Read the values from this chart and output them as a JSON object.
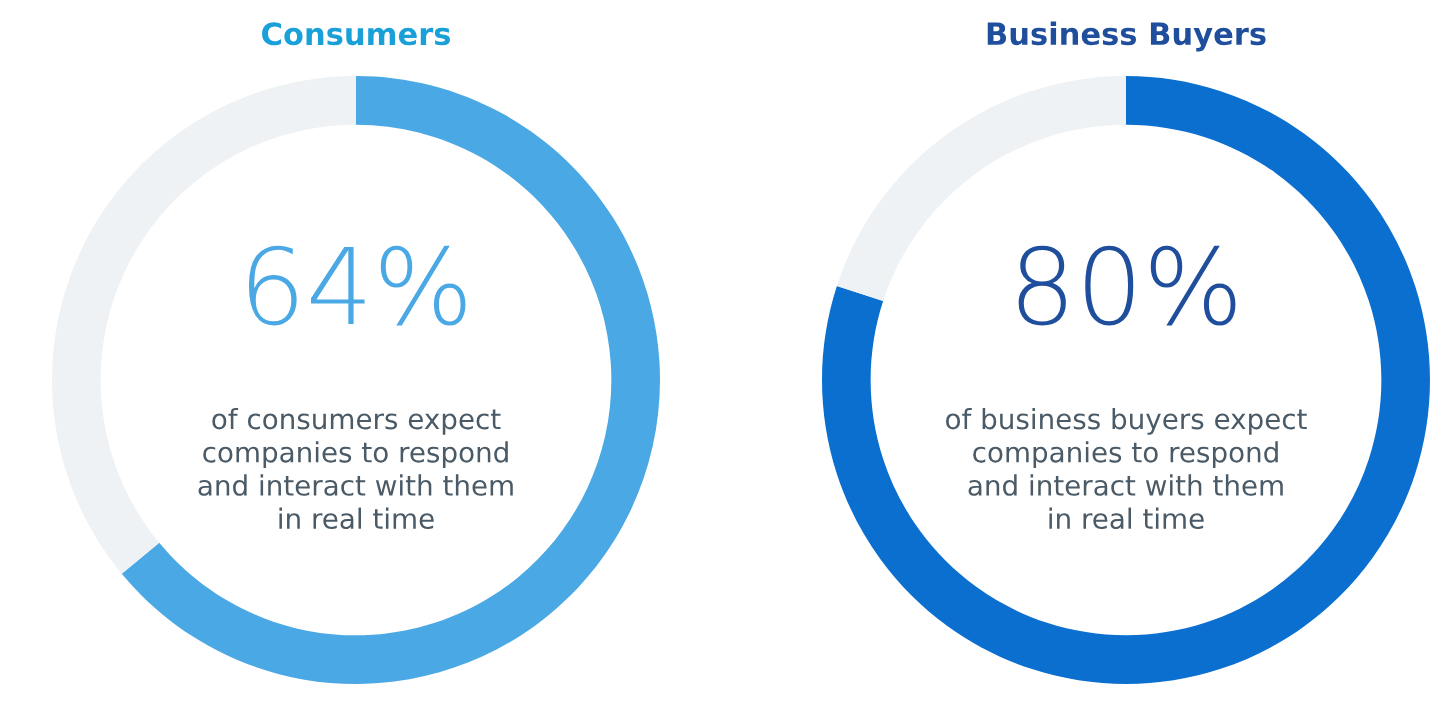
{
  "chart_data": [
    {
      "type": "donut",
      "title": "Consumers",
      "categories": [
        null,
        null
      ],
      "values": [
        64,
        36
      ],
      "colors": [
        "#4aa8e4",
        "#eef2f4"
      ],
      "value_labels": [
        "64%",
        null
      ],
      "annotations": [
        "of consumers expect\ncompanies to respond\nand interact with them\nin real time"
      ]
    },
    {
      "type": "donut",
      "title": "Business Buyers",
      "categories": [
        null,
        null
      ],
      "values": [
        80,
        20
      ],
      "colors": [
        "#0b6fd0",
        "#eef2f4"
      ],
      "value_labels": [
        "80%",
        null
      ],
      "annotations": [
        "of business buyers expect\ncompanies to respond\nand interact with them\nin real time"
      ]
    }
  ]
}
